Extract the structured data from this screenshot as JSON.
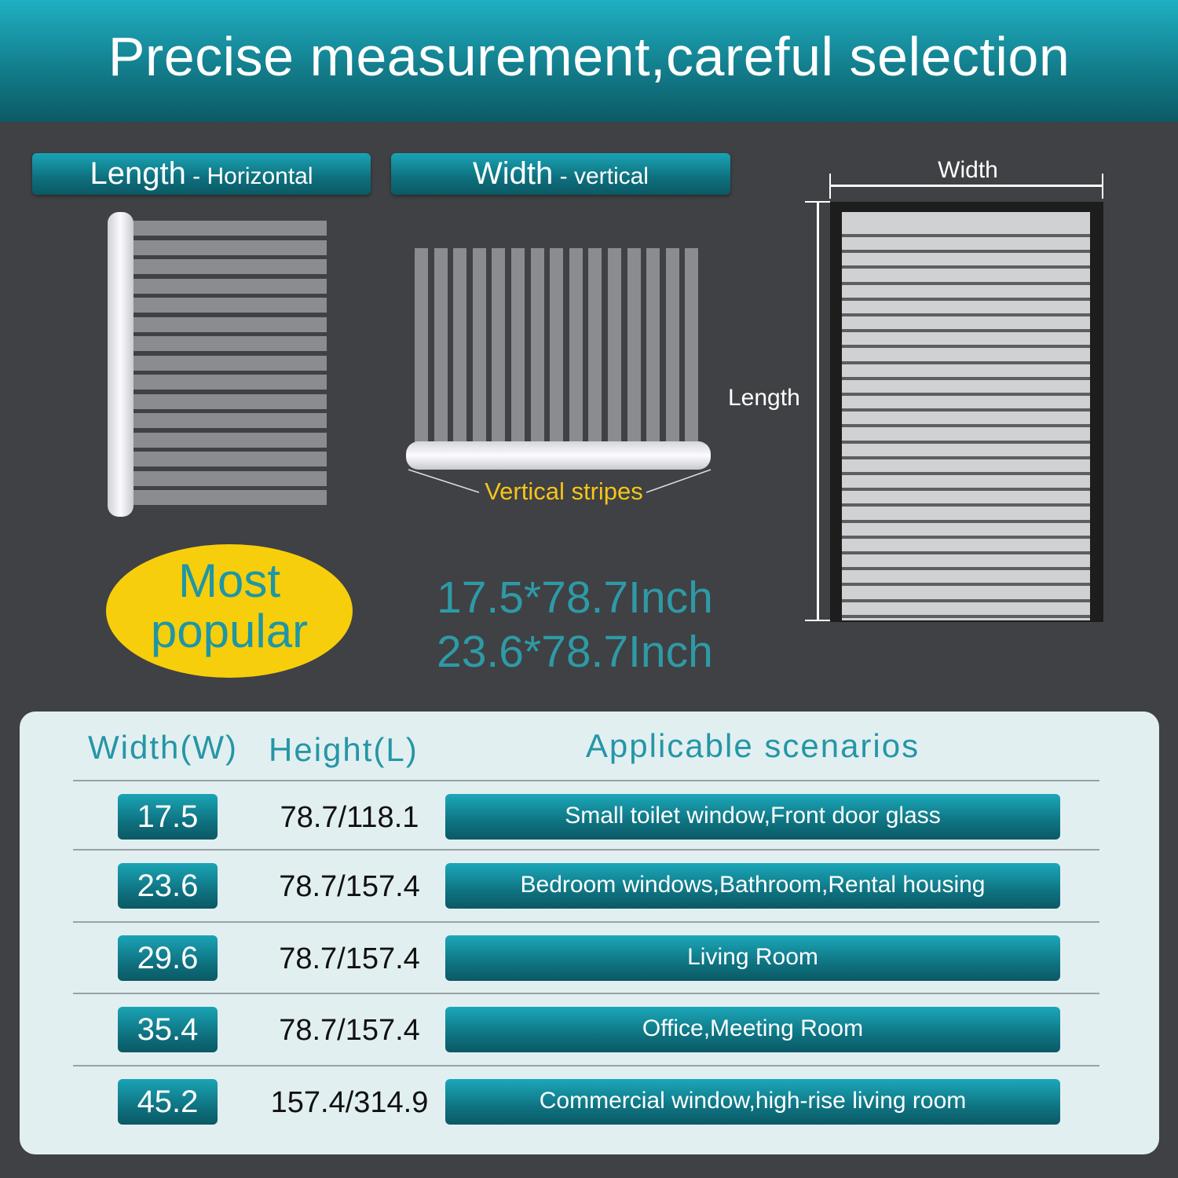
{
  "header": {
    "title": "Precise measurement,careful selection"
  },
  "labels": {
    "length": {
      "main": "Length",
      "sub": " - Horizontal"
    },
    "width": {
      "main": "Width",
      "sub": " - vertical"
    }
  },
  "diagram": {
    "vertical_stripes": "Vertical stripes",
    "width": "Width",
    "length": "Length"
  },
  "badge": {
    "line1": "Most",
    "line2": "popular",
    "color": "#f7ce0b"
  },
  "sizes": [
    "17.5*78.7Inch",
    "23.6*78.7Inch"
  ],
  "table": {
    "headers": {
      "width": "Width(W)",
      "height": "Height(L)",
      "scenarios": "Applicable scenarios"
    },
    "rows": [
      {
        "width": "17.5",
        "height": "78.7/118.1",
        "scenario": "Small toilet window,Front door glass"
      },
      {
        "width": "23.6",
        "height": "78.7/157.4",
        "scenario": "Bedroom windows,Bathroom,Rental housing"
      },
      {
        "width": "29.6",
        "height": "78.7/157.4",
        "scenario": "Living Room"
      },
      {
        "width": "35.4",
        "height": "78.7/157.4",
        "scenario": "Office,Meeting Room"
      },
      {
        "width": "45.2",
        "height": "157.4/314.9",
        "scenario": "Commercial window,high-rise living room"
      }
    ]
  },
  "colors": {
    "accent": "#1aa4b5",
    "highlight": "#f5c518",
    "background": "#3f4144"
  }
}
